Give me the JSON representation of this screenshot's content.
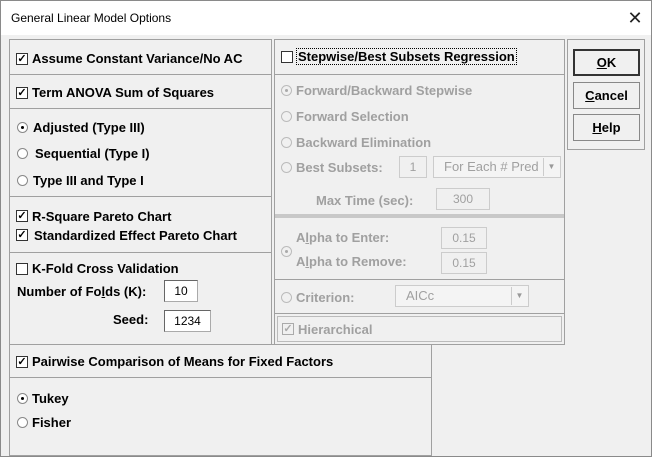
{
  "window": {
    "title": "General Linear Model Options",
    "close_icon": "close-icon"
  },
  "left": {
    "assume_constant_variance": {
      "label": "Assume Constant Variance/No AC",
      "checked": true
    },
    "term_anova": {
      "label": "Term ANOVA Sum of Squares",
      "checked": true
    },
    "ss_type": {
      "options": [
        "Adjusted (Type III)",
        "Sequential (Type I)",
        "Type III and Type I"
      ],
      "selected": "Adjusted (Type III)"
    },
    "rsquare_pareto": {
      "label": "R-Square Pareto Chart",
      "checked": true
    },
    "std_effect_pareto": {
      "label": "Standardized Effect Pareto Chart",
      "checked": true
    },
    "kfold": {
      "label": "K-Fold Cross Validation",
      "checked": false
    },
    "folds_label_pre": "Number of Fo",
    "folds_label_u": "l",
    "folds_label_post": "ds (K):",
    "folds_value": "10",
    "seed_label": "Seed:",
    "seed_value": "1234"
  },
  "stepwise": {
    "label": "Stepwise/Best Subsets Regression",
    "checked": false,
    "methods": [
      "Forward/Backward Stepwise",
      "Forward Selection",
      "Backward Elimination",
      "Best Subsets:"
    ],
    "selected_method": "Forward/Backward Stepwise",
    "best_subsets_value": "1",
    "best_subsets_mode": "For Each # Pred",
    "max_time_label": "Max Time (sec):",
    "max_time_value": "300",
    "alpha_enter_label_pre": "A",
    "alpha_enter_label_u": "l",
    "alpha_enter_label_post": "pha to Enter:",
    "alpha_enter_value": "0.15",
    "alpha_remove_label_pre": "A",
    "alpha_remove_label_u": "l",
    "alpha_remove_label_post": "pha to Remove:",
    "alpha_remove_value": "0.15",
    "criterion_label": "Criterion:",
    "criterion_value": "AICc",
    "hierarchical": {
      "label": "Hierarchical",
      "checked": true
    }
  },
  "buttons": {
    "ok_u": "O",
    "ok_rest": "K",
    "cancel_u": "C",
    "cancel_rest": "ancel",
    "help_u": "H",
    "help_rest": "elp"
  },
  "pairwise": {
    "label": "Pairwise Comparison of Means for Fixed Factors",
    "checked": true,
    "options": [
      "Tukey",
      "Fisher"
    ],
    "selected": "Tukey"
  }
}
